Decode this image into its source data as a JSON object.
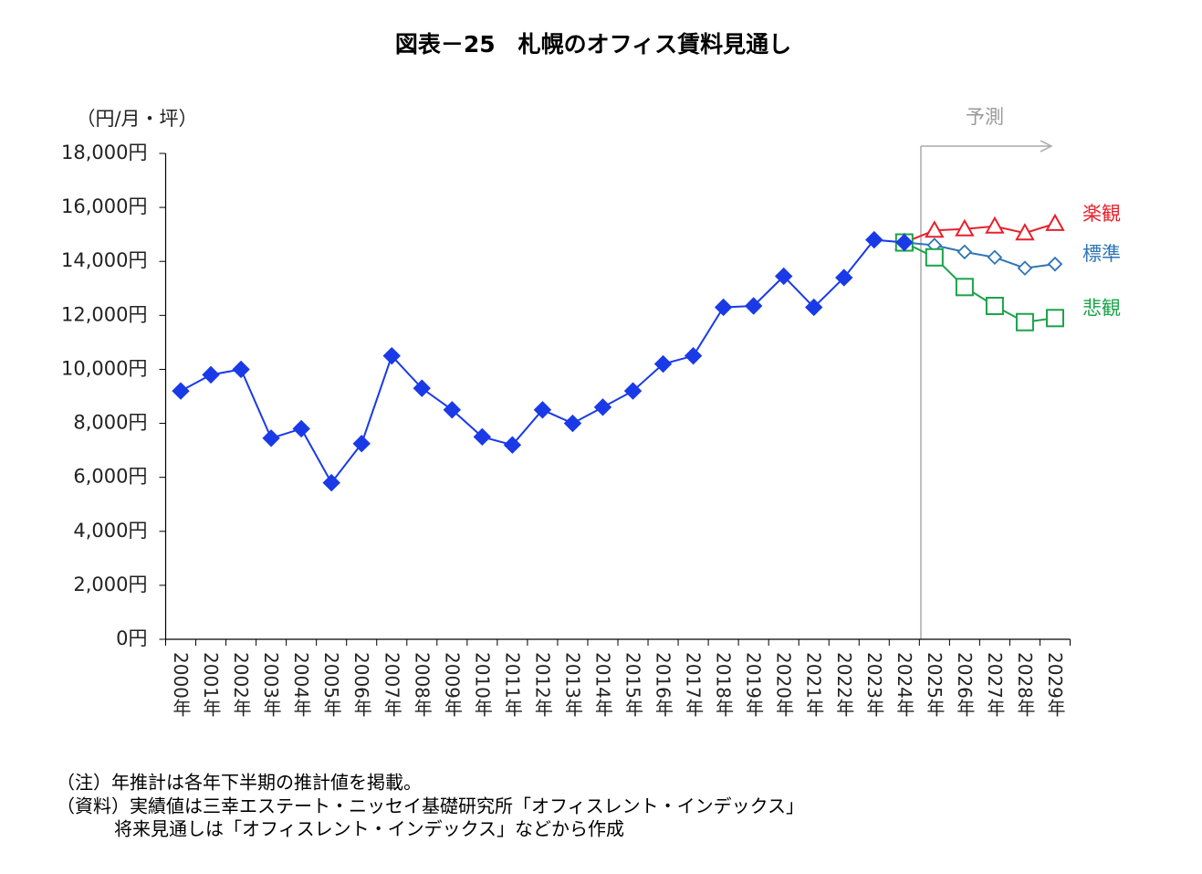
{
  "chart_data": {
    "type": "line",
    "title": "図表－25　札幌のオフィス賃料見通し",
    "y_axis_label": "（円/月・坪）",
    "annotation": "予測",
    "notes": [
      "（注）年推計は各年下半期の推計値を掲載。",
      "（資料）実績値は三幸エステート・ニッセイ基礎研究所「オフィスレント・インデックス」",
      "将来見通しは「オフィスレント・インデックス」などから作成"
    ],
    "categories": [
      "2000年",
      "2001年",
      "2002年",
      "2003年",
      "2004年",
      "2005年",
      "2006年",
      "2007年",
      "2008年",
      "2009年",
      "2010年",
      "2011年",
      "2012年",
      "2013年",
      "2014年",
      "2015年",
      "2016年",
      "2017年",
      "2018年",
      "2019年",
      "2020年",
      "2021年",
      "2022年",
      "2023年",
      "2024年",
      "2025年",
      "2026年",
      "2027年",
      "2028年",
      "2029年"
    ],
    "series": [
      {
        "name": "楽観",
        "color": "#e8202a",
        "marker": "triangle",
        "values": [
          null,
          null,
          null,
          null,
          null,
          null,
          null,
          null,
          null,
          null,
          null,
          null,
          null,
          null,
          null,
          null,
          null,
          null,
          null,
          null,
          null,
          null,
          null,
          null,
          14700,
          15150,
          15200,
          15300,
          15050,
          15400
        ]
      },
      {
        "name": "標準",
        "color": "#2e75b6",
        "marker": "diamond-open",
        "values": [
          null,
          null,
          null,
          null,
          null,
          null,
          null,
          null,
          null,
          null,
          null,
          null,
          null,
          null,
          null,
          null,
          null,
          null,
          null,
          null,
          null,
          null,
          null,
          null,
          14700,
          14600,
          14350,
          14150,
          13750,
          13900
        ]
      },
      {
        "name": "悲観",
        "color": "#1aa34a",
        "marker": "square",
        "values": [
          null,
          null,
          null,
          null,
          null,
          null,
          null,
          null,
          null,
          null,
          null,
          null,
          null,
          null,
          null,
          null,
          null,
          null,
          null,
          null,
          null,
          null,
          null,
          null,
          14700,
          14150,
          13050,
          12350,
          11750,
          11900
        ]
      },
      {
        "color": "#1a3ae8",
        "marker": "diamond",
        "values": [
          9200,
          9800,
          10000,
          7450,
          7800,
          5800,
          7250,
          10500,
          9300,
          8500,
          7500,
          7200,
          8500,
          8000,
          8600,
          9200,
          10200,
          10500,
          12300,
          12350,
          13450,
          12300,
          13400,
          14800,
          14700,
          null,
          null,
          null,
          null,
          null
        ]
      }
    ],
    "ylim": [
      0,
      18000
    ],
    "yticks": [
      {
        "value": 0,
        "label": "0円"
      },
      {
        "value": 2000,
        "label": "2,000円"
      },
      {
        "value": 4000,
        "label": "4,000円"
      },
      {
        "value": 6000,
        "label": "6,000円"
      },
      {
        "value": 8000,
        "label": "8,000円"
      },
      {
        "value": 10000,
        "label": "10,000円"
      },
      {
        "value": 12000,
        "label": "12,000円"
      },
      {
        "value": 14000,
        "label": "14,000円"
      },
      {
        "value": 16000,
        "label": "16,000円"
      },
      {
        "value": 18000,
        "label": "18,000円"
      }
    ],
    "grid": false
  }
}
